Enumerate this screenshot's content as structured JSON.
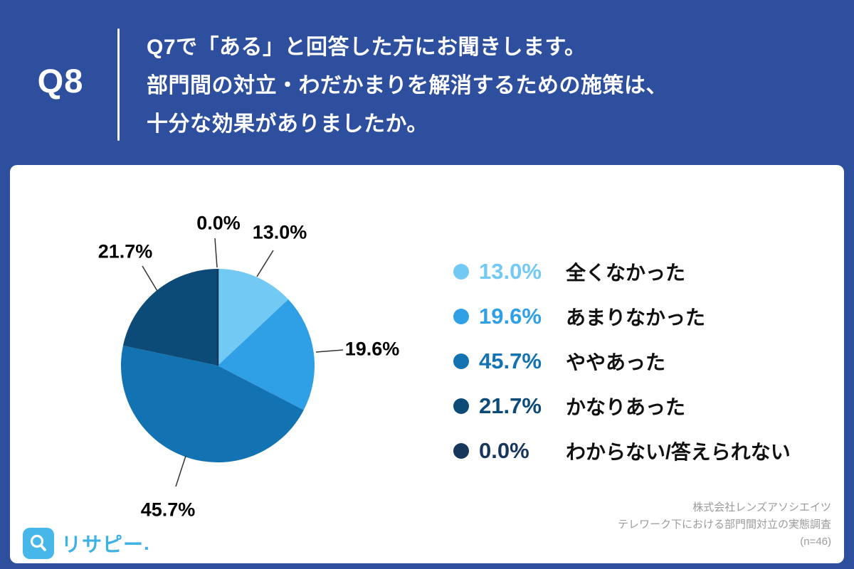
{
  "header": {
    "q_label": "Q8",
    "question_lines": [
      "Q7で「ある」と回答した方にお聞きします。",
      "部門間の対立・わだかまりを解消するための施策は、",
      "十分な効果がありましたか。"
    ]
  },
  "chart_data": {
    "type": "pie",
    "start_angle_deg": 0,
    "direction": "clockwise",
    "total": 100,
    "legend_position": "right",
    "slices": [
      {
        "label": "全くなかった",
        "value": 13.0,
        "pct_label": "13.0%",
        "color": "#72c9f3"
      },
      {
        "label": "あまりなかった",
        "value": 19.6,
        "pct_label": "19.6%",
        "color": "#2f9fe6"
      },
      {
        "label": "ややあった",
        "value": 45.7,
        "pct_label": "45.7%",
        "color": "#1373b2"
      },
      {
        "label": "かなりあった",
        "value": 21.7,
        "pct_label": "21.7%",
        "color": "#0c4a78"
      },
      {
        "label": "わからない/答えられない",
        "value": 0.0,
        "pct_label": "0.0%",
        "color": "#16365c"
      }
    ]
  },
  "footer": {
    "credit_lines": [
      "株式会社レンズアソシエイツ",
      "テレワーク下における部門間対立の実態調査",
      "(n=46)"
    ],
    "logo_text": "リサピー",
    "logo_suffix": "."
  }
}
